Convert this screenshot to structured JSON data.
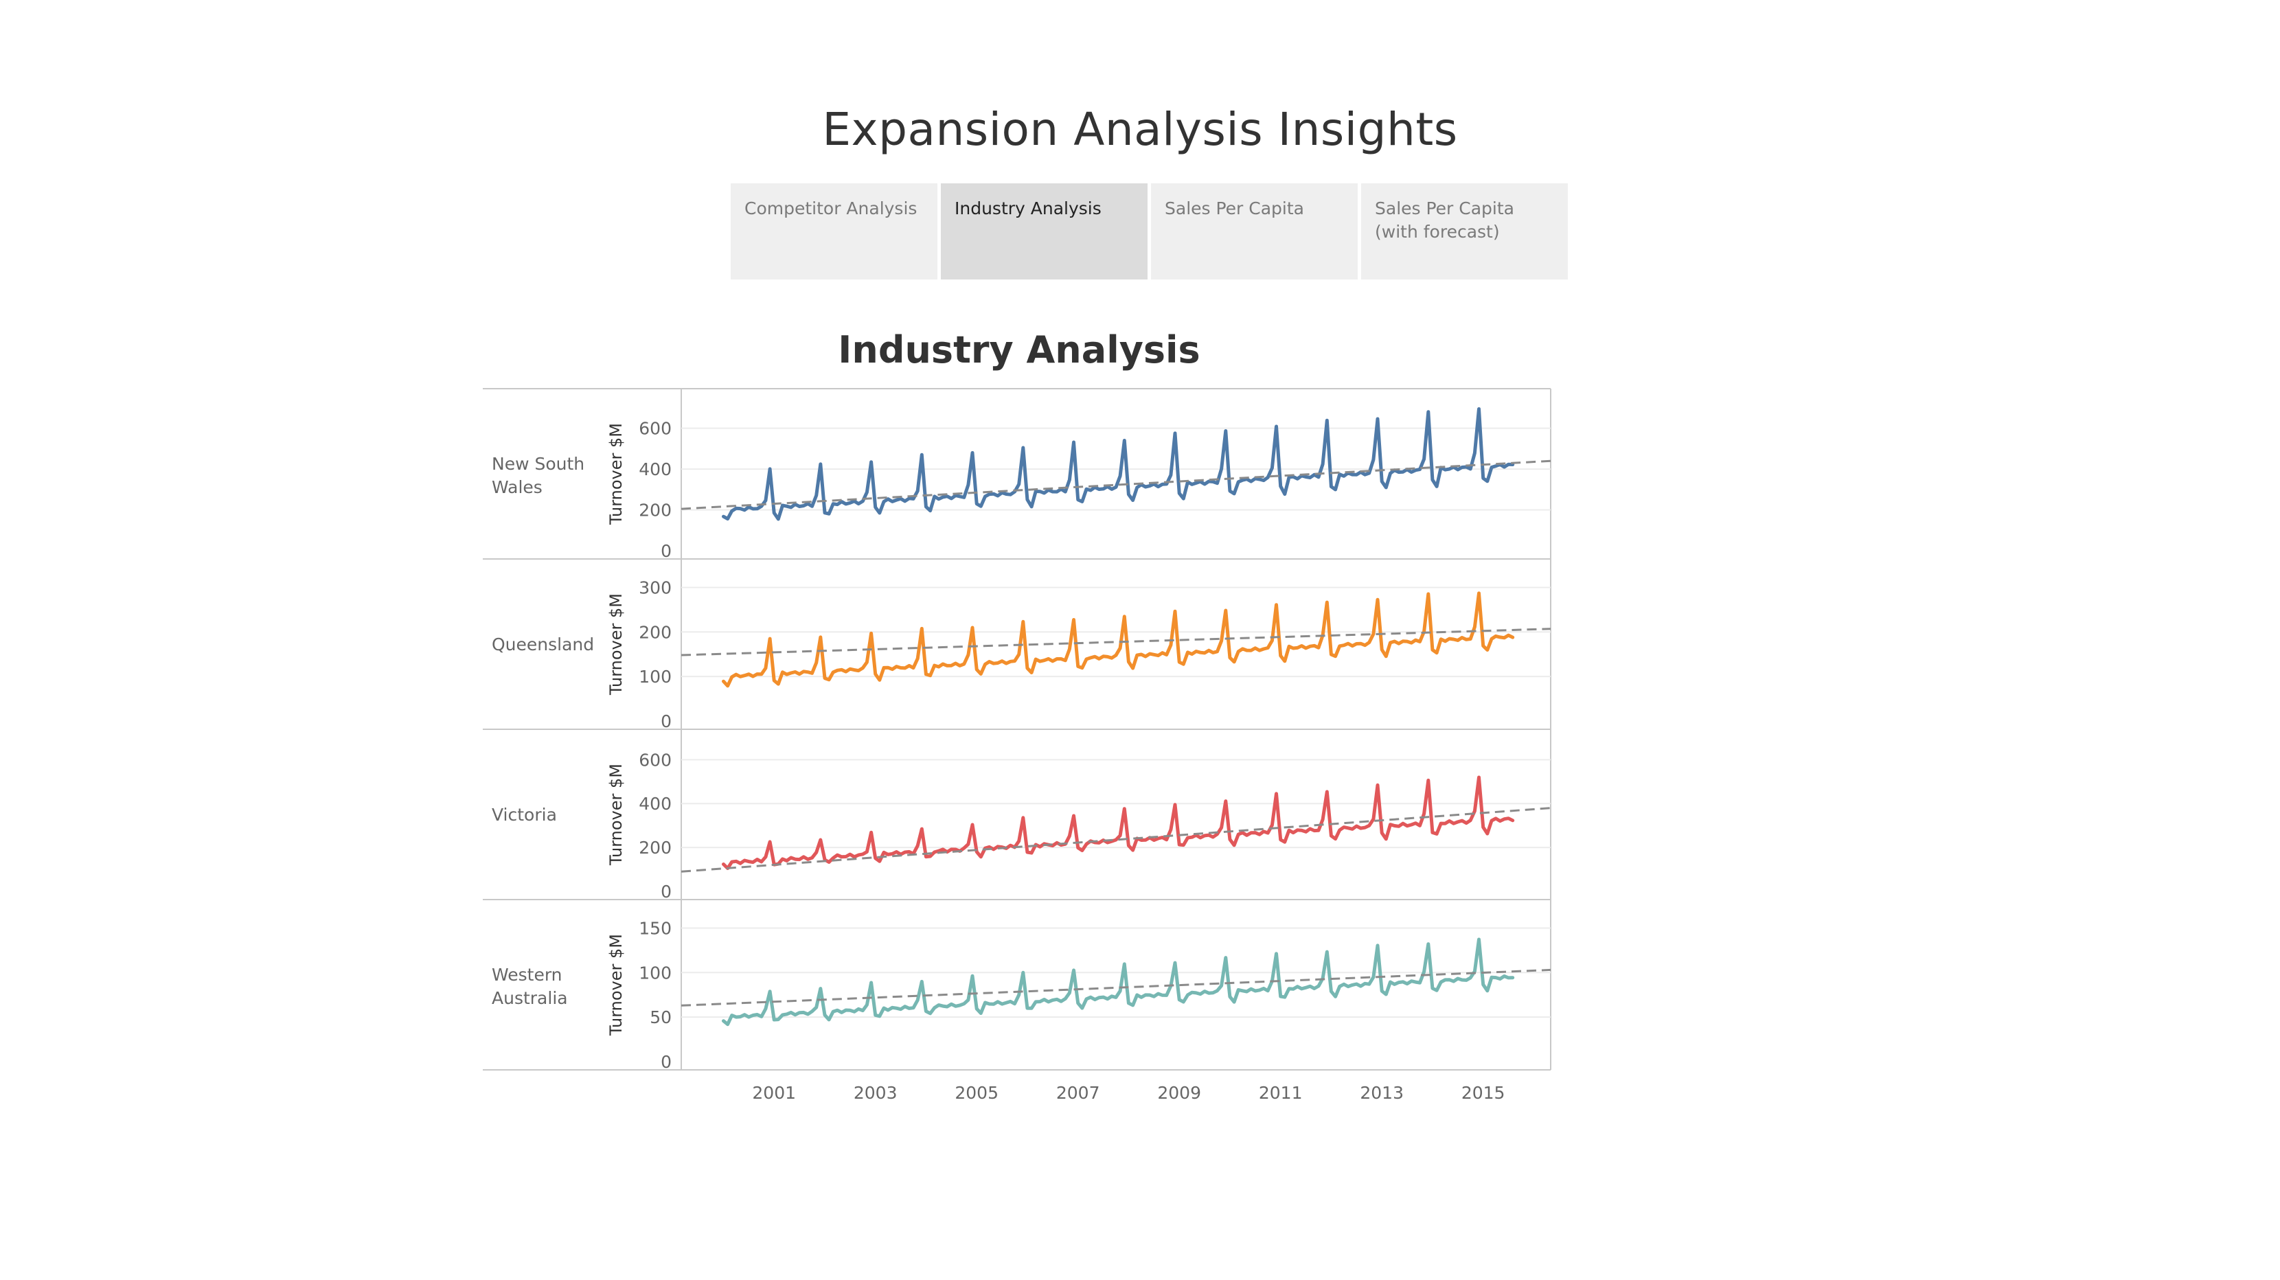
{
  "header": {
    "title": "Expansion Analysis Insights"
  },
  "tabs": [
    {
      "label": "Competitor Analysis",
      "active": false
    },
    {
      "label": "Industry Analysis",
      "active": true
    },
    {
      "label": "Sales Per Capita",
      "active": false
    },
    {
      "label": "Sales Per Capita (with forecast)",
      "active": false
    }
  ],
  "chart_data": {
    "type": "line",
    "title": "Industry Analysis",
    "ylabel": "Turnover $M",
    "x_start": "2000-01",
    "x_end": "2015-08",
    "x_range": [
      "1999-03",
      "2016-05"
    ],
    "x_ticks": [
      "2001",
      "2003",
      "2005",
      "2007",
      "2009",
      "2011",
      "2013",
      "2015"
    ],
    "trend_line_color": "#8a8a8a",
    "grid": true,
    "panels": [
      {
        "name": "New South Wales",
        "color": "#4e79a7",
        "ylim": [
          0,
          720
        ],
        "yticks": [
          0,
          200,
          400,
          600
        ],
        "base": [
          200,
          420
        ],
        "peak": 180,
        "peak_growth": 110,
        "trend": [
          205,
          440
        ]
      },
      {
        "name": "Queensland",
        "color": "#f28e2b",
        "ylim": [
          0,
          330
        ],
        "yticks": [
          0,
          100,
          200,
          300
        ],
        "base": [
          100,
          190
        ],
        "peak": 75,
        "peak_growth": 30,
        "trend": [
          148,
          207
        ]
      },
      {
        "name": "Victoria",
        "color": "#e15759",
        "ylim": [
          0,
          670
        ],
        "yticks": [
          0,
          200,
          400,
          600
        ],
        "base": [
          130,
          330
        ],
        "peak": 70,
        "peak_growth": 140,
        "trend": [
          90,
          380
        ]
      },
      {
        "name": "Western Australia",
        "color": "#76b7b2",
        "ylim": [
          0,
          165
        ],
        "yticks": [
          0,
          50,
          100,
          150
        ],
        "base": [
          50,
          95
        ],
        "peak": 25,
        "peak_growth": 20,
        "trend": [
          63,
          103
        ]
      }
    ]
  }
}
